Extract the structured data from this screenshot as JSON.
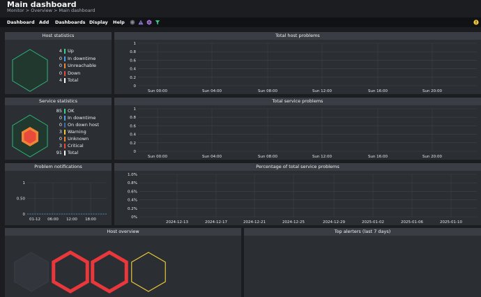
{
  "header": {
    "title": "Main dashboard",
    "breadcrumb": "Monitor > Overview > Main dashboard"
  },
  "menu": {
    "items": [
      "Dashboard",
      "Add",
      "Dashboards",
      "Display",
      "Help"
    ],
    "icons": [
      "circle-grey-icon",
      "warning-triangle-icon",
      "hexagon-purple-icon",
      "filter-icon"
    ],
    "alert_icon": "exclamation-circle-icon"
  },
  "host_statistics": {
    "title": "Host statistics",
    "rows": [
      {
        "count": "4",
        "label": "Up",
        "color": "#3bd18c"
      },
      {
        "count": "0",
        "label": "In downtime",
        "color": "#4e9fe0"
      },
      {
        "count": "0",
        "label": "Unreachable",
        "color": "#f08535"
      },
      {
        "count": "0",
        "label": "Down",
        "color": "#e84a3c"
      },
      {
        "count": "4",
        "label": "Total",
        "color": "#ffffff"
      }
    ]
  },
  "service_statistics": {
    "title": "Service statistics",
    "rows": [
      {
        "count": "85",
        "label": "OK",
        "color": "#3bd18c"
      },
      {
        "count": "0",
        "label": "In downtime",
        "color": "#4e9fe0"
      },
      {
        "count": "0",
        "label": "On down host",
        "color": "#3a6ea8"
      },
      {
        "count": "3",
        "label": "Warning",
        "color": "#f3c73a"
      },
      {
        "count": "0",
        "label": "Unknown",
        "color": "#f08535"
      },
      {
        "count": "3",
        "label": "Critical",
        "color": "#e84a3c"
      },
      {
        "count": "91",
        "label": "Total",
        "color": "#ffffff"
      }
    ]
  },
  "panels": {
    "total_host_problems": "Total host problems",
    "total_service_problems": "Total service problems",
    "problem_notifications": "Problem notifications",
    "percentage_service_problems": "Percentage of total service problems",
    "host_overview": "Host overview",
    "top_alerters": "Top alerters (last 7 days)"
  },
  "chart_data": [
    {
      "type": "line",
      "title": "Total host problems",
      "y_ticks": [
        "0",
        "0.2",
        "0.4",
        "0.6",
        "0.8",
        "1"
      ],
      "x_ticks": [
        "Sun 00:00",
        "Sun 04:00",
        "Sun 08:00",
        "Sun 12:00",
        "Sun 16:00",
        "Sun 20:00"
      ],
      "ylim": [
        0,
        1
      ],
      "series": [],
      "grid": true
    },
    {
      "type": "line",
      "title": "Total service problems",
      "y_ticks": [
        "0",
        "0.2",
        "0.4",
        "0.6",
        "0.8",
        "1"
      ],
      "x_ticks": [
        "Sun 00:00",
        "Sun 04:00",
        "Sun 08:00",
        "Sun 12:00",
        "Sun 16:00",
        "Sun 20:00"
      ],
      "ylim": [
        0,
        1
      ],
      "series": [],
      "grid": true
    },
    {
      "type": "line",
      "title": "Problem notifications",
      "y_ticks": [
        "0",
        "0.50",
        "1"
      ],
      "x_ticks": [
        "01-12",
        "06:00",
        "12:00",
        "18:00"
      ],
      "ylim": [
        0,
        1
      ],
      "series": [
        {
          "values": [
            0,
            0,
            0,
            0,
            0
          ]
        }
      ],
      "grid": true
    },
    {
      "type": "line",
      "title": "Percentage of total service problems",
      "y_ticks": [
        "0%",
        "0.2%",
        "0.4%",
        "0.6%",
        "0.8%",
        "1.0%"
      ],
      "x_ticks": [
        "2024-12-13",
        "2024-12-17",
        "2024-12-21",
        "2024-12-25",
        "2024-12-29",
        "2025-01-02",
        "2025-01-06",
        "2025-01-10"
      ],
      "ylim": [
        0,
        1
      ],
      "series": [],
      "grid": true
    }
  ],
  "host_overview": {
    "hexagons": [
      {
        "state": "empty",
        "color": "#3a3e44"
      },
      {
        "state": "critical",
        "color": "#e8383c"
      },
      {
        "state": "critical",
        "color": "#e8383c"
      },
      {
        "state": "warning",
        "color": "#e8c53a"
      }
    ]
  }
}
